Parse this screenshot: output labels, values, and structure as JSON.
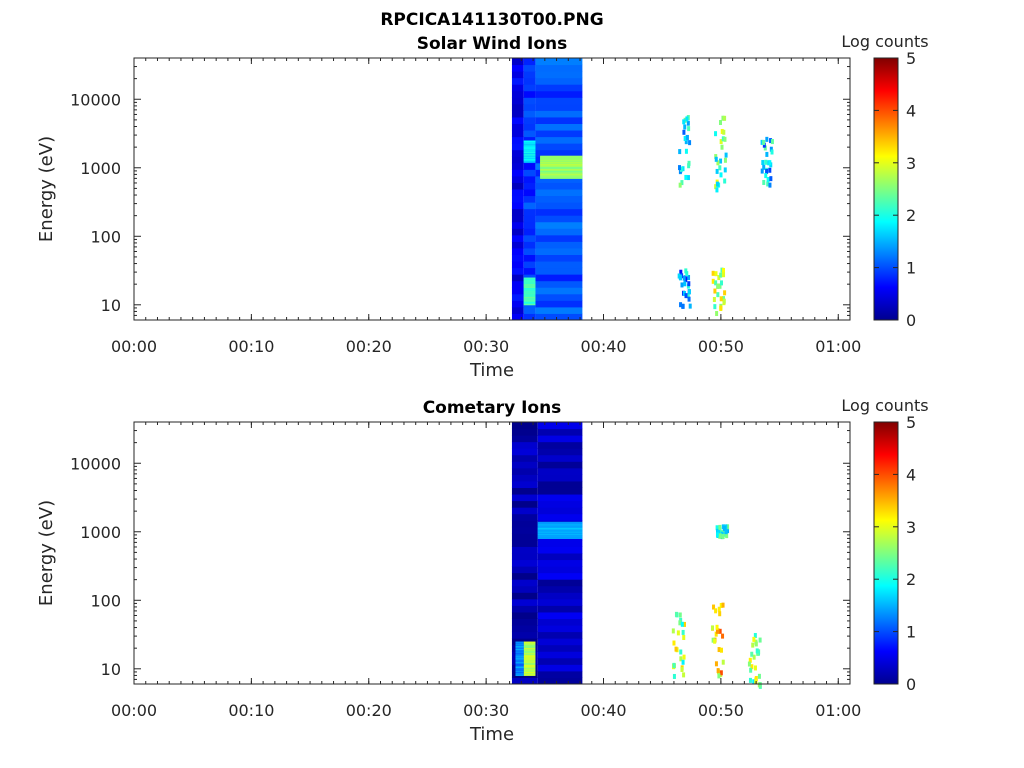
{
  "figure": {
    "title": "RPCICA141130T00.PNG"
  },
  "colorbar": {
    "label": "Log counts",
    "range": [
      0,
      5
    ],
    "ticks": [
      "0",
      "1",
      "2",
      "3",
      "4",
      "5"
    ],
    "colormap": "jet"
  },
  "chart_data": [
    {
      "type": "heatmap",
      "title": "Solar Wind Ions",
      "xlabel": "Time",
      "ylabel": "Energy (eV)",
      "x_ticks": [
        "00:00",
        "00:10",
        "00:20",
        "00:30",
        "00:40",
        "00:50",
        "01:00"
      ],
      "x_tick_minutes": [
        0,
        10,
        20,
        30,
        40,
        50,
        60
      ],
      "xlim_minutes": [
        0,
        61
      ],
      "y_ticks": [
        "10",
        "100",
        "1000",
        "10000"
      ],
      "y_tick_values": [
        10,
        100,
        1000,
        10000
      ],
      "ylim": [
        6,
        40000
      ],
      "yscale": "log",
      "blocks": [
        {
          "t_start": 32.2,
          "t_end": 33.2,
          "e_low": 6,
          "e_high": 40000,
          "intensity": 0.5,
          "note": "dark band"
        },
        {
          "t_start": 33.2,
          "t_end": 34.2,
          "e_low": 6,
          "e_high": 40000,
          "intensity": 0.9
        },
        {
          "t_start": 34.2,
          "t_end": 38.2,
          "e_low": 6,
          "e_high": 40000,
          "intensity": 1.0
        },
        {
          "t_start": 33.2,
          "t_end": 34.2,
          "e_low": 10,
          "e_high": 25,
          "intensity": 2.2
        },
        {
          "t_start": 33.2,
          "t_end": 34.2,
          "e_low": 1200,
          "e_high": 2500,
          "intensity": 1.8
        },
        {
          "t_start": 34.6,
          "t_end": 38.2,
          "e_low": 700,
          "e_high": 1500,
          "intensity": 2.6
        }
      ],
      "scatter_clusters": [
        {
          "t": 46.8,
          "e_low": 600,
          "e_high": 6000,
          "intensity": 1.8
        },
        {
          "t": 49.9,
          "e_low": 500,
          "e_high": 6000,
          "intensity": 2.3
        },
        {
          "t": 53.8,
          "e_low": 600,
          "e_high": 3000,
          "intensity": 1.6
        },
        {
          "t": 46.8,
          "e_low": 10,
          "e_high": 35,
          "intensity": 1.5
        },
        {
          "t": 49.7,
          "e_low": 8,
          "e_high": 35,
          "intensity": 2.6
        }
      ]
    },
    {
      "type": "heatmap",
      "title": "Cometary Ions",
      "xlabel": "Time",
      "ylabel": "Energy (eV)",
      "x_ticks": [
        "00:00",
        "00:10",
        "00:20",
        "00:30",
        "00:40",
        "00:50",
        "01:00"
      ],
      "x_tick_minutes": [
        0,
        10,
        20,
        30,
        40,
        50,
        60
      ],
      "xlim_minutes": [
        0,
        61
      ],
      "y_ticks": [
        "10",
        "100",
        "1000",
        "10000"
      ],
      "y_tick_values": [
        10,
        100,
        1000,
        10000
      ],
      "ylim": [
        6,
        40000
      ],
      "yscale": "log",
      "blocks": [
        {
          "t_start": 32.2,
          "t_end": 34.4,
          "e_low": 6,
          "e_high": 40000,
          "intensity": 0.2
        },
        {
          "t_start": 34.4,
          "t_end": 38.2,
          "e_low": 6,
          "e_high": 40000,
          "intensity": 0.35
        },
        {
          "t_start": 34.4,
          "t_end": 38.2,
          "e_low": 800,
          "e_high": 1400,
          "intensity": 1.5
        },
        {
          "t_start": 33.2,
          "t_end": 34.2,
          "e_low": 8,
          "e_high": 25,
          "intensity": 2.8
        },
        {
          "t_start": 32.5,
          "t_end": 33.2,
          "e_low": 8,
          "e_high": 25,
          "intensity": 1.3
        }
      ],
      "scatter_clusters": [
        {
          "t": 46.3,
          "e_low": 8,
          "e_high": 80,
          "intensity": 2.6
        },
        {
          "t": 49.6,
          "e_low": 8,
          "e_high": 100,
          "intensity": 3.3
        },
        {
          "t": 52.8,
          "e_low": 6,
          "e_high": 40,
          "intensity": 2.5
        },
        {
          "t": 50.0,
          "e_low": 900,
          "e_high": 1300,
          "intensity": 1.8
        }
      ]
    }
  ]
}
